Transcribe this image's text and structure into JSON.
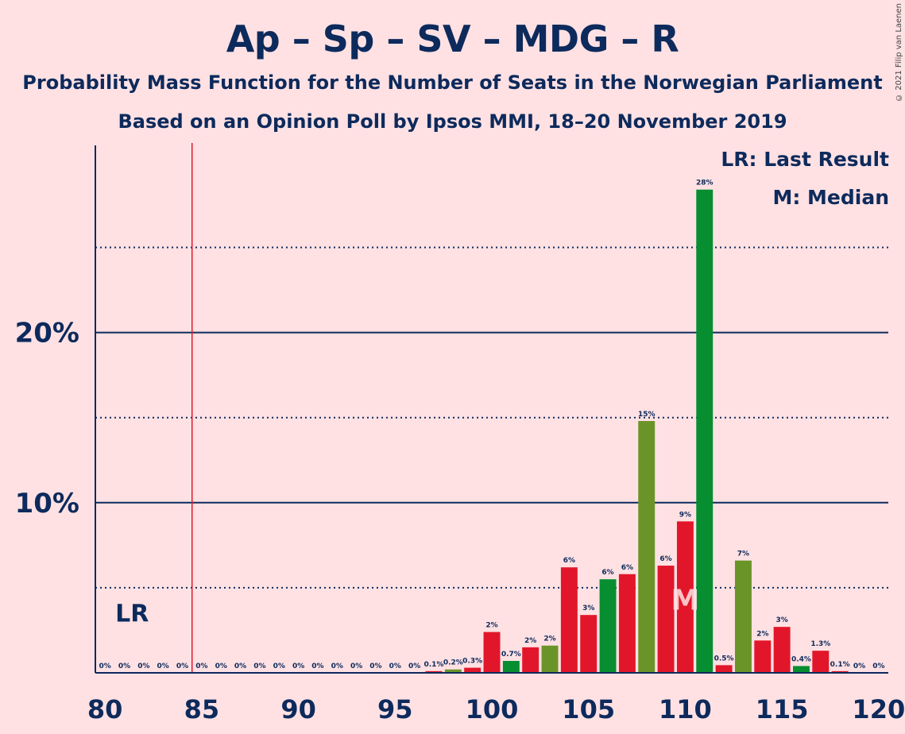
{
  "title": "Ap – Sp – SV – MDG – R",
  "subtitle": "Probability Mass Function for the Number of Seats in the Norwegian Parliament",
  "subtitle2": "Based on an Opinion Poll by Ipsos MMI, 18–20 November 2019",
  "copyright": "© 2021 Filip van Laenen",
  "legend": {
    "last_result": "LR: Last Result",
    "median": "M: Median"
  },
  "colors": {
    "background": "#FFE1E3",
    "text": "#0D2A5C",
    "red": "#E2162A",
    "olive": "#6B9428",
    "green": "#078E30",
    "lr_line": "#E2162A"
  },
  "chart_data": {
    "type": "bar",
    "x": [
      80,
      81,
      82,
      83,
      84,
      85,
      86,
      87,
      88,
      89,
      90,
      91,
      92,
      93,
      94,
      95,
      96,
      97,
      98,
      99,
      100,
      101,
      102,
      103,
      104,
      105,
      106,
      107,
      108,
      109,
      110,
      111,
      112,
      113,
      114,
      115,
      116,
      117,
      118,
      119,
      120
    ],
    "values": [
      0,
      0,
      0,
      0,
      0,
      0,
      0,
      0,
      0,
      0,
      0,
      0,
      0,
      0,
      0,
      0,
      0,
      0.1,
      0.2,
      0.3,
      2.4,
      0.7,
      1.5,
      1.6,
      6.2,
      3.4,
      5.5,
      5.8,
      14.8,
      6.3,
      8.9,
      28.4,
      0.45,
      6.6,
      1.9,
      2.7,
      0.4,
      1.3,
      0.1,
      0,
      0
    ],
    "labels": [
      "0%",
      "0%",
      "0%",
      "0%",
      "0%",
      "0%",
      "0%",
      "0%",
      "0%",
      "0%",
      "0%",
      "0%",
      "0%",
      "0%",
      "0%",
      "0%",
      "0%",
      "0.1%",
      "0.2%",
      "0.3%",
      "2%",
      "0.7%",
      "2%",
      "2%",
      "6%",
      "3%",
      "6%",
      "6%",
      "15%",
      "6%",
      "9%",
      "28%",
      "0.5%",
      "7%",
      "2%",
      "3%",
      "0.4%",
      "1.3%",
      "0.1%",
      "0%",
      "0%"
    ],
    "bar_colors": [
      "red",
      "red",
      "red",
      "red",
      "red",
      "red",
      "red",
      "red",
      "red",
      "red",
      "red",
      "red",
      "red",
      "red",
      "red",
      "red",
      "red",
      "red",
      "olive",
      "red",
      "red",
      "green",
      "red",
      "olive",
      "red",
      "red",
      "green",
      "red",
      "olive",
      "red",
      "red",
      "green",
      "red",
      "olive",
      "red",
      "red",
      "green",
      "red",
      "red",
      "red",
      "red"
    ],
    "xticks": [
      80,
      85,
      90,
      95,
      100,
      105,
      110,
      115,
      120
    ],
    "xtick_labels": [
      "80",
      "85",
      "90",
      "95",
      "100",
      "105",
      "110",
      "115",
      "120"
    ],
    "yticks": [
      10,
      20
    ],
    "ytick_labels": [
      "10%",
      "20%"
    ],
    "dotted_gridlines": [
      5,
      15,
      25
    ],
    "solid_gridlines": [
      10,
      20
    ],
    "ylim": [
      0,
      31
    ],
    "xlim": [
      79.5,
      120.5
    ],
    "last_result": 84.5,
    "last_result_label": "LR",
    "median": 110,
    "median_label": "M"
  }
}
